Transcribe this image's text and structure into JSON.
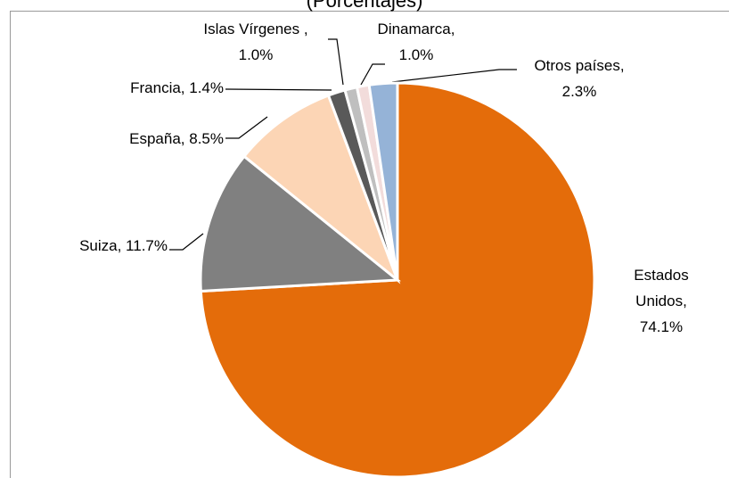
{
  "chart_data": {
    "type": "pie",
    "subtitle": "(Porcentajes)",
    "values": [
      74.1,
      11.7,
      8.5,
      1.4,
      1.0,
      1.0,
      2.3
    ],
    "value_labels": [
      "Estados\nUnidos, 74.1%",
      "Suiza, 11.7%",
      "España, 8.5%",
      "Francia, 1.4%",
      "Islas Vírgenes ,\n1.0%",
      "Dinamarca,\n1.0%",
      "Otros países,\n2.3%"
    ],
    "colors": [
      "#e46c0a",
      "#808080",
      "#fcd5b5",
      "#595959",
      "#bfbfbf",
      "#f2dcdb",
      "#95b3d7"
    ]
  }
}
